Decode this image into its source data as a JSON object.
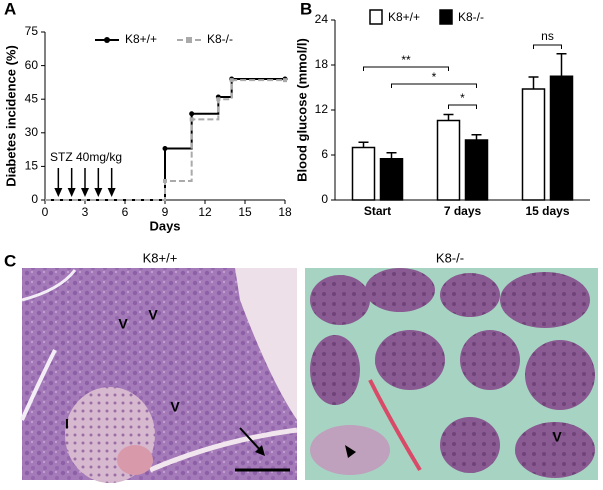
{
  "panel_labels": [
    "A",
    "B",
    "C"
  ],
  "chart_data": [
    {
      "type": "line",
      "step": true,
      "xlabel": "Days",
      "ylabel": "Diabetes incidence (%)",
      "x": [
        0,
        9,
        11,
        13,
        14,
        18
      ],
      "series": [
        {
          "name": "K8+/+",
          "color": "#000000",
          "dashed": false,
          "marker": "circle",
          "values": [
            0,
            23,
            38.5,
            46,
            54,
            54
          ]
        },
        {
          "name": "K8-/-",
          "color": "#aaaaaa",
          "dashed": true,
          "marker": "square",
          "values": [
            0,
            8.5,
            36,
            45,
            53.5,
            53.5
          ]
        }
      ],
      "xlim": [
        0,
        18
      ],
      "xticks": [
        0,
        3,
        6,
        9,
        12,
        15,
        18
      ],
      "ylim": [
        0,
        75
      ],
      "yticks": [
        0,
        15,
        30,
        45,
        60,
        75
      ],
      "annotation": "STZ 40mg/kg",
      "arrows_x": [
        1,
        2,
        3,
        4,
        5
      ]
    },
    {
      "type": "bar",
      "ylabel": "Blood glucose (mmol/l)",
      "categories": [
        "Start",
        "7 days",
        "15 days"
      ],
      "series": [
        {
          "name": "K8+/+",
          "color": "#ffffff",
          "values": [
            7.0,
            10.6,
            14.8
          ],
          "errors": [
            0.7,
            0.8,
            1.6
          ]
        },
        {
          "name": "K8-/-",
          "color": "#000000",
          "values": [
            5.5,
            8.0,
            16.5
          ],
          "errors": [
            0.8,
            0.7,
            3.0
          ]
        }
      ],
      "ylim": [
        0,
        24
      ],
      "yticks": [
        0,
        6,
        12,
        18,
        24
      ],
      "significance": [
        "**",
        "*",
        "*",
        "ns"
      ]
    }
  ],
  "micrographs": {
    "titles": [
      "K8+/+",
      "K8-/-"
    ],
    "labels": [
      "V",
      "V",
      "V",
      "I",
      "V"
    ]
  }
}
